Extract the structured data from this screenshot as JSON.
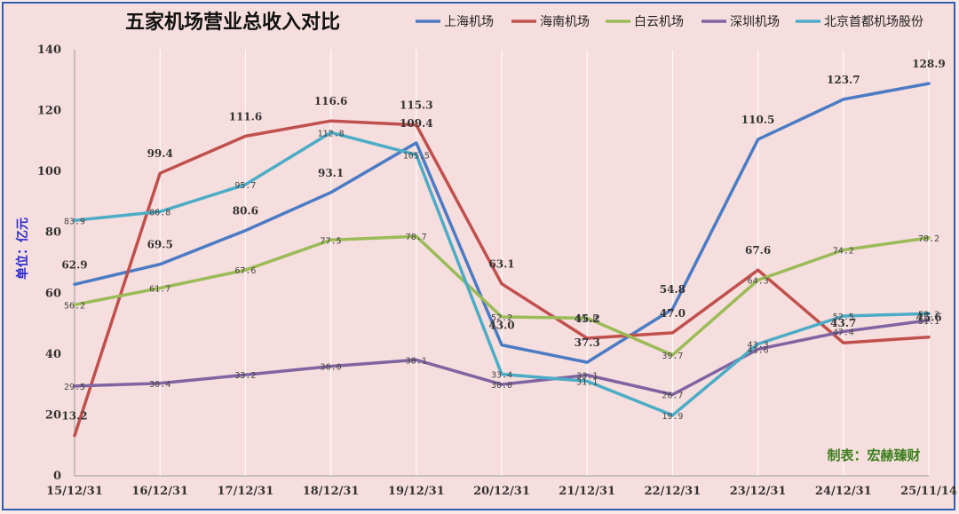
{
  "chart_data": {
    "type": "line",
    "title": "五家机场营业总收入对比",
    "ylabel": "单位：亿元",
    "credit": "制表：宏赫臻财",
    "ylim": [
      0,
      140
    ],
    "yticks": [
      0,
      20,
      40,
      60,
      80,
      100,
      120,
      140
    ],
    "grid": "vertical",
    "legend_position": "top",
    "categories": [
      "15/12/31",
      "16/12/31",
      "17/12/31",
      "18/12/31",
      "19/12/31",
      "20/12/31",
      "21/12/31",
      "22/12/31",
      "23/12/31",
      "24/12/31",
      "25/11/14"
    ],
    "series": [
      {
        "name": "上海机场",
        "color": "#4a7bc4",
        "label_style": "bold",
        "values": [
          62.9,
          69.5,
          80.6,
          93.1,
          109.4,
          43.0,
          37.3,
          54.8,
          110.5,
          123.7,
          128.9
        ]
      },
      {
        "name": "海南机场",
        "color": "#c0504d",
        "label_style": "bold",
        "values": [
          13.2,
          99.4,
          111.6,
          116.6,
          115.3,
          63.1,
          45.2,
          47.0,
          67.6,
          43.7,
          45.6
        ]
      },
      {
        "name": "白云机场",
        "color": "#9bbb59",
        "label_style": "small",
        "values": [
          56.2,
          61.7,
          67.6,
          77.5,
          78.7,
          52.2,
          51.8,
          39.7,
          64.3,
          74.2,
          78.2
        ]
      },
      {
        "name": "深圳机场",
        "color": "#8064a2",
        "label_style": "small",
        "values": [
          29.5,
          30.4,
          33.2,
          36.0,
          38.1,
          30.0,
          33.1,
          26.7,
          41.6,
          47.4,
          51.1
        ]
      },
      {
        "name": "北京首都机场股份",
        "color": "#4bacc6",
        "label_style": "small",
        "values": [
          83.9,
          86.8,
          95.7,
          112.8,
          105.5,
          33.4,
          31.1,
          19.9,
          43.3,
          52.5,
          53.3
        ]
      }
    ]
  }
}
